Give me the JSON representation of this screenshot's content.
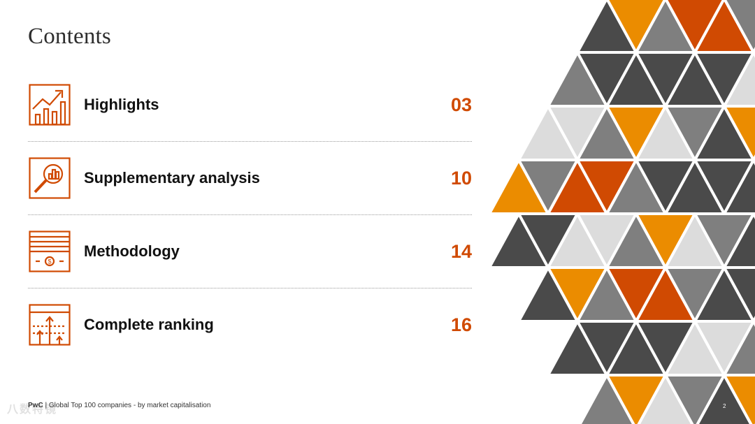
{
  "title": "Contents",
  "accent_color": "#d04a02",
  "items": [
    {
      "label": "Highlights",
      "page": "03",
      "icon": "rising-chart-icon"
    },
    {
      "label": "Supplementary analysis",
      "page": "10",
      "icon": "magnifier-chart-icon"
    },
    {
      "label": "Methodology",
      "page": "14",
      "icon": "banknote-stack-icon"
    },
    {
      "label": "Complete ranking",
      "page": "16",
      "icon": "ranking-arrows-icon"
    }
  ],
  "footer": {
    "brand": "PwC",
    "separator": " | ",
    "text": "Global Top 100 companies - by market capitalisation"
  },
  "page_number": "2",
  "watermark": "八数特镜",
  "mosaic_colors": {
    "dark": "#4a4a4a",
    "mid": "#7f7f7f",
    "light": "#dcdcdc",
    "orange": "#d04a02",
    "amber": "#eb8c00"
  }
}
